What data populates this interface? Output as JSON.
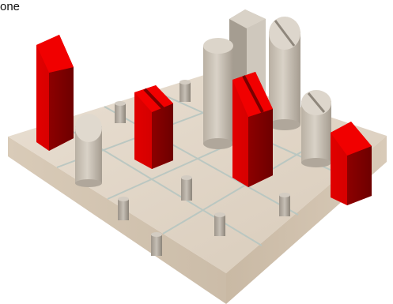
{
  "caption_text": "one",
  "colors": {
    "wood": "#e2d6c6",
    "wood_dark": "#cdbfad",
    "red": "#d90000",
    "red_dark": "#8a0000",
    "stone": "#c9c1b6"
  }
}
